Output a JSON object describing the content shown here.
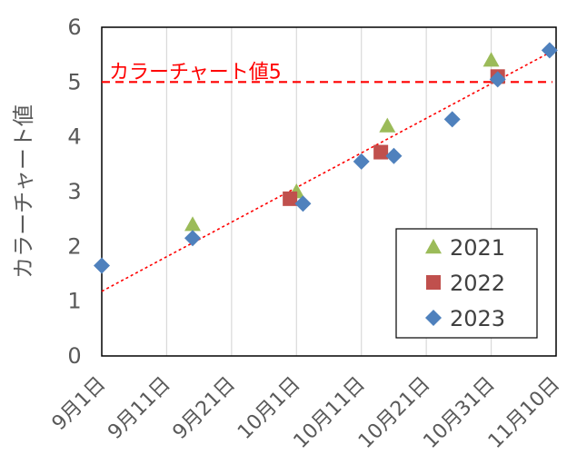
{
  "chart_data": {
    "type": "scatter",
    "title": "",
    "xlabel": "",
    "ylabel": "カラーチャート値",
    "ylim": [
      0,
      6
    ],
    "yticks": [
      "0",
      "1",
      "2",
      "3",
      "4",
      "5",
      "6"
    ],
    "xlim": [
      "2023-09-01",
      "2023-11-10"
    ],
    "xticks": [
      "9月1日",
      "9月11日",
      "9月21日",
      "10月1日",
      "10月11日",
      "10月21日",
      "10月31日",
      "11月10日"
    ],
    "grid": "vertical",
    "legend_position": "bottom-right",
    "reference_line": {
      "y": 5,
      "label": "カラーチャート値5",
      "color": "#ff0000",
      "style": "dashed"
    },
    "trendline": {
      "x": [
        "2023-09-01",
        "2023-11-10"
      ],
      "y": [
        1.18,
        5.6
      ],
      "color": "#ff0000",
      "style": "dotted"
    },
    "series": [
      {
        "name": "2021",
        "marker": "triangle",
        "color": "#9bbb59",
        "x": [
          "2023-09-15",
          "2023-10-01",
          "2023-10-15",
          "2023-10-31"
        ],
        "y": [
          2.4,
          3.0,
          4.2,
          5.4
        ]
      },
      {
        "name": "2022",
        "marker": "square",
        "color": "#c0504d",
        "x": [
          "2023-09-30",
          "2023-10-14",
          "2023-11-01"
        ],
        "y": [
          2.87,
          3.72,
          5.1
        ]
      },
      {
        "name": "2023",
        "marker": "diamond",
        "color": "#4f81bd",
        "x": [
          "2023-09-01",
          "2023-09-15",
          "2023-10-02",
          "2023-10-11",
          "2023-10-16",
          "2023-10-25",
          "2023-11-01",
          "2023-11-09"
        ],
        "y": [
          1.65,
          2.15,
          2.78,
          3.55,
          3.65,
          4.32,
          5.05,
          5.58
        ]
      }
    ]
  }
}
